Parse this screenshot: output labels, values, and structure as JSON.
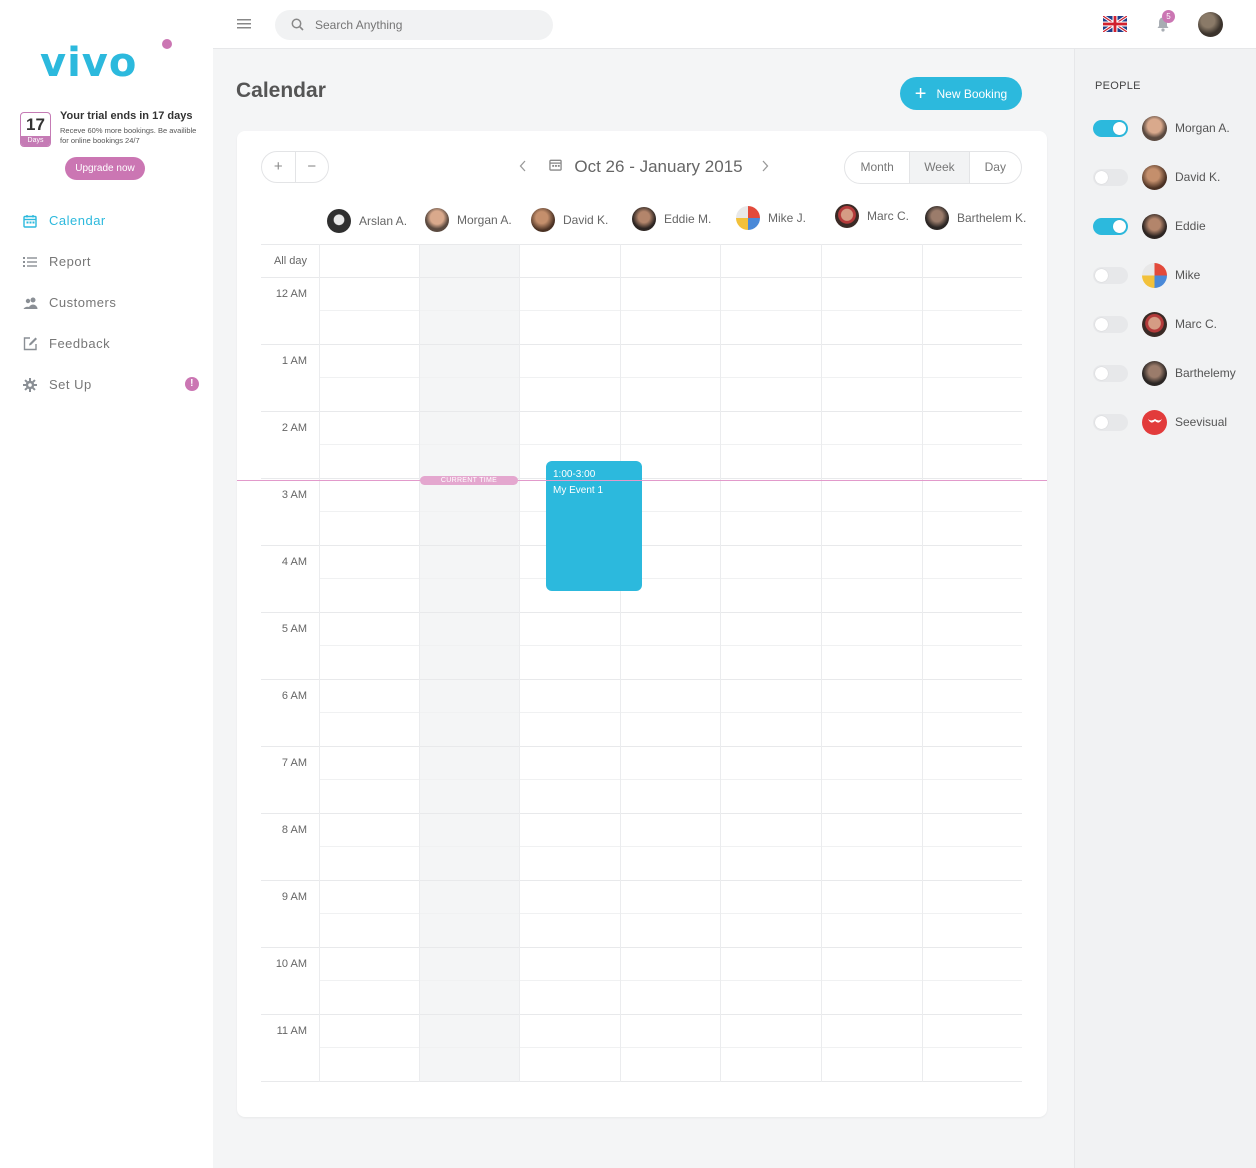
{
  "brand": {
    "logo_text": "vivo",
    "accent": "#2cb9dd",
    "pink": "#cb76b3"
  },
  "trial": {
    "days_number": "17",
    "days_label": "Days",
    "title": "Your trial ends in 17 days",
    "subtitle": "Receve 60% more bookings. Be availible for online bookings 24/7",
    "upgrade_label": "Upgrade now"
  },
  "nav": [
    {
      "label": "Calendar",
      "icon": "calendar-icon",
      "active": true
    },
    {
      "label": "Report",
      "icon": "list-icon"
    },
    {
      "label": "Customers",
      "icon": "users-icon"
    },
    {
      "label": "Feedback",
      "icon": "edit-icon"
    },
    {
      "label": "Set Up",
      "icon": "gear-icon",
      "badge": "!"
    }
  ],
  "topbar": {
    "search_placeholder": "Search Anything",
    "notification_count": "5",
    "language_icon": "uk-flag-icon"
  },
  "page": {
    "title": "Calendar",
    "new_booking_label": "New Booking"
  },
  "calendar": {
    "zoom_in": "+",
    "zoom_out": "−",
    "date_range": "Oct 26 - January 2015",
    "views": [
      "Month",
      "Week",
      "Day"
    ],
    "active_view": "Week",
    "columns": [
      "Arslan A.",
      "Morgan A.",
      "David K.",
      "Eddie M.",
      "Mike J.",
      "Marc C.",
      "Barthelem K."
    ],
    "all_day_label": "All day",
    "times": [
      "12 AM",
      "1 AM",
      "2 AM",
      "3 AM",
      "4 AM",
      "5 AM",
      "6 AM",
      "7 AM",
      "8 AM",
      "9 AM",
      "10 AM",
      "11 AM"
    ],
    "current_time_label": "CURRENT TIME",
    "event": {
      "time": "1:00-3:00",
      "title": "My Event 1",
      "column": "David K.",
      "start": "1:00",
      "end": "3:00"
    }
  },
  "people": {
    "title": "PEOPLE",
    "list": [
      {
        "name": "Morgan A.",
        "enabled": true
      },
      {
        "name": "David K.",
        "enabled": false
      },
      {
        "name": "Eddie",
        "enabled": true
      },
      {
        "name": "Mike",
        "enabled": false
      },
      {
        "name": "Marc C.",
        "enabled": false
      },
      {
        "name": "Barthelemy",
        "enabled": false
      },
      {
        "name": "Seevisual",
        "enabled": false
      }
    ]
  }
}
